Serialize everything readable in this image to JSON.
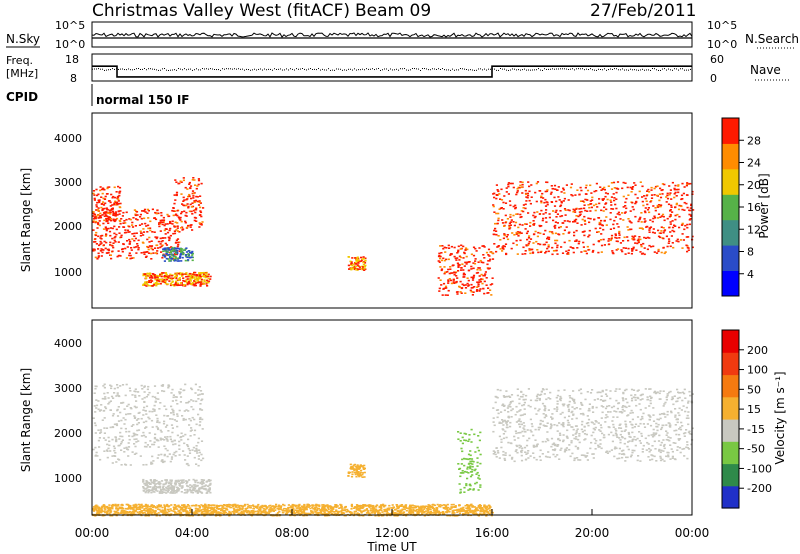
{
  "header": {
    "station": "Christmas Valley West (fitACF)",
    "beam": "Beam 09",
    "date": "27/Feb/2011"
  },
  "status_panel": {
    "nsky_label": "N.Sky",
    "nsearch_label": "N.Search",
    "nsky_ticks": [
      "10^5",
      "10^0"
    ],
    "nsearch_ticks": [
      "10^5",
      "10^0"
    ],
    "freq_label_1": "Freq.",
    "freq_label_2": "[MHz]",
    "freq_ticks": [
      "18",
      "8"
    ],
    "nave_label": "Nave",
    "nave_ticks": [
      "60",
      "0"
    ],
    "cpid_label": "CPID",
    "cpid_value": "normal 150 IF",
    "freq_series_mhz": [
      {
        "start": "00:00",
        "end": "01:00",
        "value": 13.5
      },
      {
        "start": "01:00",
        "end": "16:00",
        "value": 9.5
      },
      {
        "start": "16:00",
        "end": "24:00",
        "value": 13.5
      }
    ]
  },
  "chart_data": [
    {
      "type": "heatmap",
      "title": "Power",
      "ylabel": "Slant Range [km]",
      "ylim": [
        200,
        4500
      ],
      "yticks": [
        "1000",
        "2000",
        "3000",
        "4000"
      ],
      "xlim": [
        "00:00",
        "24:00"
      ],
      "colorbar_label": "Power [dB]",
      "colorbar_ticks": [
        "28",
        "24",
        "20",
        "16",
        "12",
        "8",
        "4"
      ],
      "colorbar_colors": [
        "#0000ff",
        "#2a4cc8",
        "#3f8f84",
        "#56b248",
        "#f0c800",
        "#ff8c00",
        "#ff1a00"
      ],
      "regions": [
        {
          "t0": 0.0,
          "t1": 3.5,
          "r0": 1300,
          "r1": 2400,
          "level": "strong",
          "note": "early arc"
        },
        {
          "t0": 0.0,
          "t1": 1.1,
          "r0": 2100,
          "r1": 2900,
          "level": "strong"
        },
        {
          "t0": 3.2,
          "t1": 4.4,
          "r0": 1900,
          "r1": 3100,
          "level": "strong"
        },
        {
          "t0": 2.0,
          "t1": 4.7,
          "r0": 700,
          "r1": 1000,
          "level": "medium"
        },
        {
          "t0": 2.8,
          "t1": 4.0,
          "r0": 1250,
          "r1": 1550,
          "level": "weak"
        },
        {
          "t0": 10.2,
          "t1": 10.9,
          "r0": 1050,
          "r1": 1350,
          "level": "medium"
        },
        {
          "t0": 13.8,
          "t1": 16.0,
          "r0": 500,
          "r1": 1600,
          "level": "strong"
        },
        {
          "t0": 16.0,
          "t1": 24.0,
          "r0": 1400,
          "r1": 3000,
          "level": "strong"
        }
      ]
    },
    {
      "type": "heatmap",
      "title": "Velocity",
      "ylabel": "Slant Range [km]",
      "ylim": [
        200,
        4500
      ],
      "yticks": [
        "1000",
        "2000",
        "3000",
        "4000"
      ],
      "xlabel": "Time UT",
      "xticks": [
        "00:00",
        "04:00",
        "08:00",
        "12:00",
        "16:00",
        "20:00",
        "00:00"
      ],
      "colorbar_label": "Velocity [m s⁻¹]",
      "colorbar_ticks": [
        "200",
        "100",
        "50",
        "15",
        "-15",
        "-50",
        "-100",
        "-200"
      ],
      "colorbar_colors": [
        "#2030c8",
        "#2f8a4a",
        "#79c843",
        "#c8c8c0",
        "#f5b030",
        "#f57a10",
        "#f03a10",
        "#e80000"
      ],
      "regions": [
        {
          "t0": 0.0,
          "t1": 4.4,
          "r0": 1300,
          "r1": 3100,
          "level": "gray"
        },
        {
          "t0": 2.0,
          "t1": 4.7,
          "r0": 700,
          "r1": 1000,
          "level": "gray"
        },
        {
          "t0": 10.2,
          "t1": 10.9,
          "r0": 1050,
          "r1": 1350,
          "level": "orange"
        },
        {
          "t0": 0.0,
          "t1": 16.0,
          "r0": 200,
          "r1": 450,
          "level": "orange"
        },
        {
          "t0": 14.6,
          "t1": 15.5,
          "r0": 700,
          "r1": 2100,
          "level": "green"
        },
        {
          "t0": 16.0,
          "t1": 24.0,
          "r0": 1400,
          "r1": 3000,
          "level": "gray"
        }
      ]
    }
  ]
}
